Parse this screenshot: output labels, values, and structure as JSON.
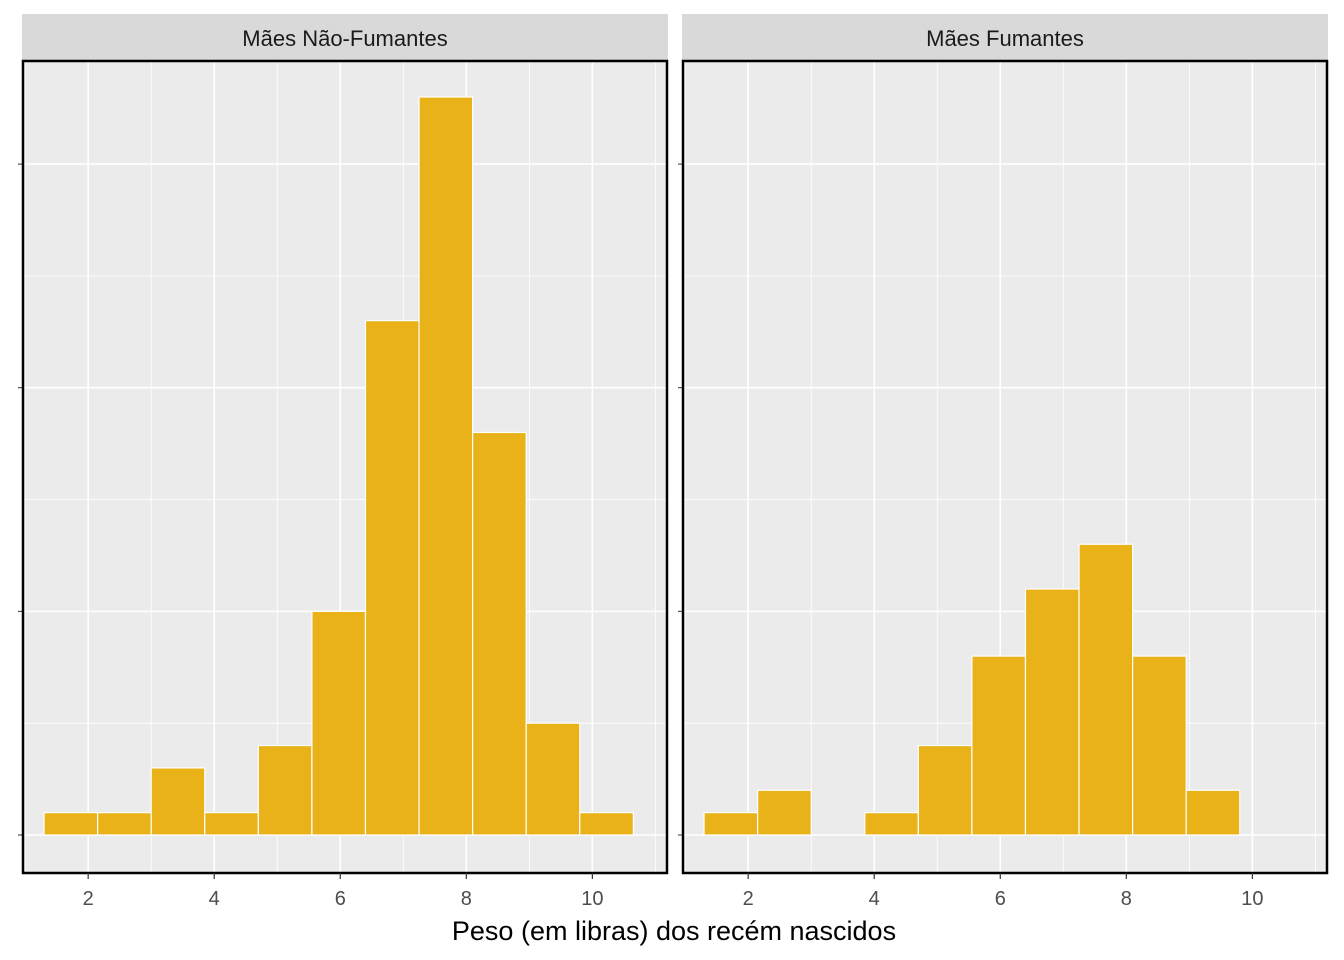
{
  "chart_data": {
    "type": "bar",
    "subtype": "faceted-histogram",
    "xlabel": "Peso (em libras) dos recém nascidos",
    "ylabel": "",
    "x_ticks": [
      2,
      4,
      6,
      8,
      10
    ],
    "xlim": [
      0.95,
      11.2
    ],
    "ylim": [
      0,
      34
    ],
    "y_grid_major": [
      0,
      10,
      20,
      30
    ],
    "y_tick_labels_shown": false,
    "grid": true,
    "bar_color": "#E9B218",
    "bar_outline": "#FFFFFF",
    "panel_background": "#EBEBEB",
    "strip_background": "#D9D9D9",
    "bins": [
      [
        1.3,
        2.15
      ],
      [
        2.15,
        3.0
      ],
      [
        3.0,
        3.85
      ],
      [
        3.85,
        4.7
      ],
      [
        4.7,
        5.55
      ],
      [
        5.55,
        6.4
      ],
      [
        6.4,
        7.25
      ],
      [
        7.25,
        8.1
      ],
      [
        8.1,
        8.95
      ],
      [
        8.95,
        9.8
      ],
      [
        9.8,
        10.65
      ]
    ],
    "facets": [
      {
        "label": "Mães Não-Fumantes",
        "counts": [
          1,
          1,
          3,
          1,
          4,
          10,
          23,
          33,
          18,
          5,
          1
        ]
      },
      {
        "label": "Mães Fumantes",
        "counts": [
          1,
          2,
          0,
          1,
          4,
          8,
          11,
          13,
          8,
          2,
          0
        ]
      }
    ]
  }
}
